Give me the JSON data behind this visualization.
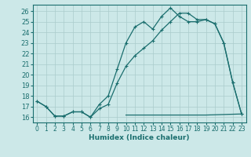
{
  "xlabel": "Humidex (Indice chaleur)",
  "ylabel": "",
  "bg_color": "#cce8e8",
  "line_color": "#1a6e6e",
  "grid_color": "#b8d8d8",
  "xlim": [
    -0.5,
    23.5
  ],
  "ylim": [
    15.5,
    26.6
  ],
  "xticks": [
    0,
    1,
    2,
    3,
    4,
    5,
    6,
    7,
    8,
    9,
    10,
    11,
    12,
    13,
    14,
    15,
    16,
    17,
    18,
    19,
    20,
    21,
    22,
    23
  ],
  "yticks": [
    16,
    17,
    18,
    19,
    20,
    21,
    22,
    23,
    24,
    25,
    26
  ],
  "line1_x": [
    0,
    1,
    2,
    3,
    4,
    5,
    6,
    7,
    8,
    9,
    10,
    11,
    12,
    13,
    14,
    15,
    16,
    17,
    18,
    19,
    20,
    21,
    22,
    23
  ],
  "line1_y": [
    17.5,
    17.0,
    16.1,
    16.1,
    16.5,
    16.5,
    16.0,
    17.2,
    18.0,
    20.5,
    23.0,
    24.5,
    25.0,
    24.3,
    25.5,
    26.3,
    25.5,
    25.0,
    25.0,
    25.2,
    24.8,
    23.0,
    19.3,
    16.3
  ],
  "line2_x": [
    0,
    1,
    2,
    3,
    4,
    5,
    6,
    7,
    8,
    9,
    10,
    11,
    12,
    13,
    14,
    15,
    16,
    17,
    18,
    19,
    20,
    21,
    22,
    23
  ],
  "line2_y": [
    17.5,
    17.0,
    16.1,
    16.1,
    16.5,
    16.5,
    16.0,
    16.8,
    17.2,
    19.2,
    20.8,
    21.8,
    22.5,
    23.2,
    24.2,
    25.0,
    25.8,
    25.8,
    25.2,
    25.2,
    24.8,
    23.0,
    19.3,
    16.3
  ],
  "line3_x": [
    10,
    19,
    23
  ],
  "line3_y": [
    16.2,
    16.2,
    16.3
  ]
}
